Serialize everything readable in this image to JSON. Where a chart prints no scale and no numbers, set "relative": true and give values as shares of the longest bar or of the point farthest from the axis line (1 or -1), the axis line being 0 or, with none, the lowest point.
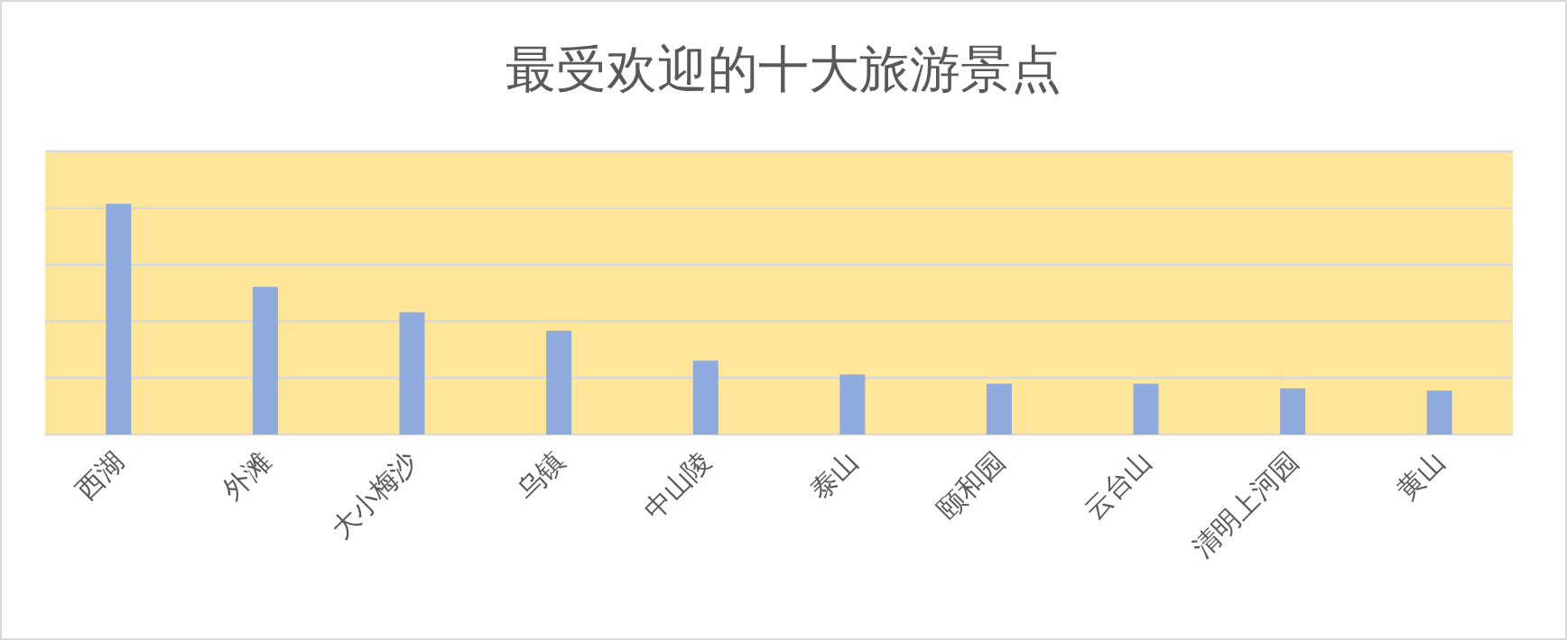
{
  "chart_data": {
    "type": "bar",
    "title": "最受欢迎的十大旅游景点",
    "categories": [
      "西湖",
      "外滩",
      "大小梅沙",
      "乌镇",
      "中山陵",
      "泰山",
      "颐和园",
      "云台山",
      "清明上河园",
      "黄山"
    ],
    "values": [
      1,
      0.64,
      0.53,
      0.45,
      0.32,
      0.26,
      0.22,
      0.22,
      0.2,
      0.19
    ],
    "color": "#8faadc",
    "relative": true,
    "grid": "y"
  }
}
